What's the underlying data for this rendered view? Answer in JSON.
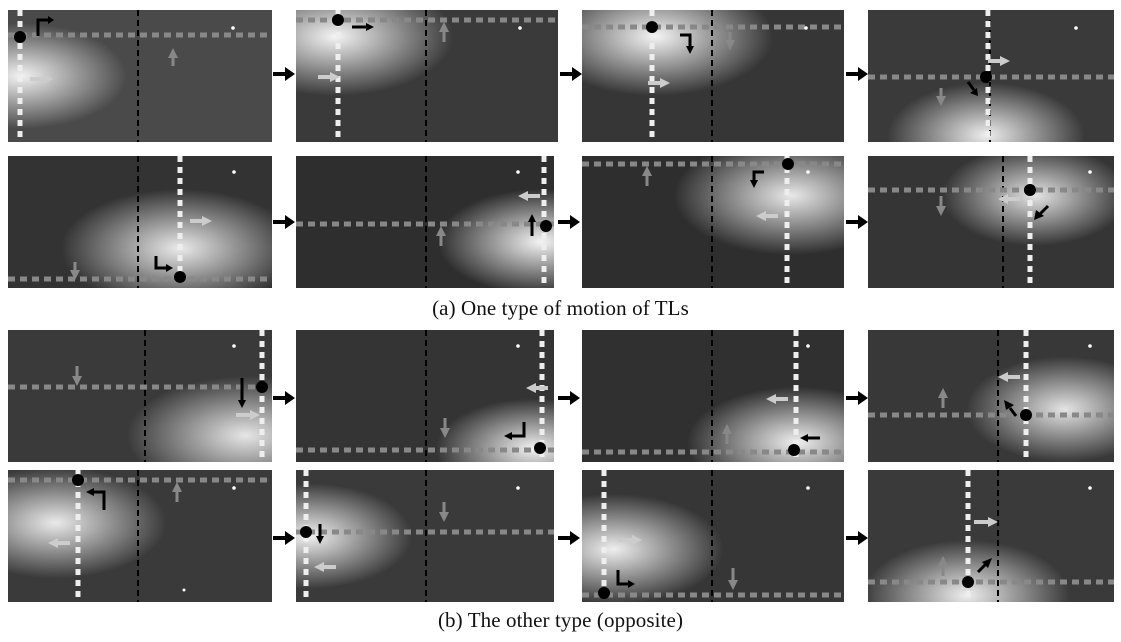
{
  "captions": {
    "a": "(a) One type of motion of TLs",
    "b": "(b) The other type (opposite)"
  },
  "icons": {
    "transition": "right-arrow-icon",
    "tl_marker": "black-dot-icon",
    "motion_cue": "corner-arrow-icon",
    "direction": "light-arrow-icon"
  },
  "colors": {
    "background": "#ffffff",
    "panel_dark": "#2f2f2f",
    "panel_light": "#f4f4f4",
    "dashed_divider": "#000000",
    "horizontal_track": "#8c8c8c",
    "vertical_track": "#eeeeee",
    "marker": "#000000"
  }
}
